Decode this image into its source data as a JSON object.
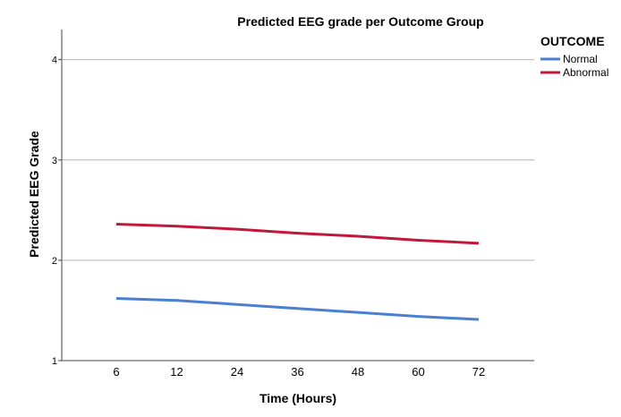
{
  "chart_data": {
    "type": "line",
    "title": "Predicted EEG grade per Outcome Group",
    "xlabel": "Time (Hours)",
    "ylabel": "Predicted EEG Grade",
    "categories": [
      "6",
      "12",
      "24",
      "36",
      "48",
      "60",
      "72"
    ],
    "ylim": [
      1,
      4.3
    ],
    "yticks": [
      "1",
      "2",
      "3",
      "4"
    ],
    "grid": "horizontal",
    "legend": {
      "title": "OUTCOME",
      "placement": "top-right"
    },
    "series": [
      {
        "name": "Normal",
        "color": "#4a7fd4",
        "values": [
          1.62,
          1.6,
          1.56,
          1.52,
          1.48,
          1.44,
          1.41
        ]
      },
      {
        "name": "Abnormal",
        "color": "#c0183a",
        "values": [
          2.36,
          2.34,
          2.31,
          2.27,
          2.24,
          2.2,
          2.17
        ]
      }
    ]
  }
}
